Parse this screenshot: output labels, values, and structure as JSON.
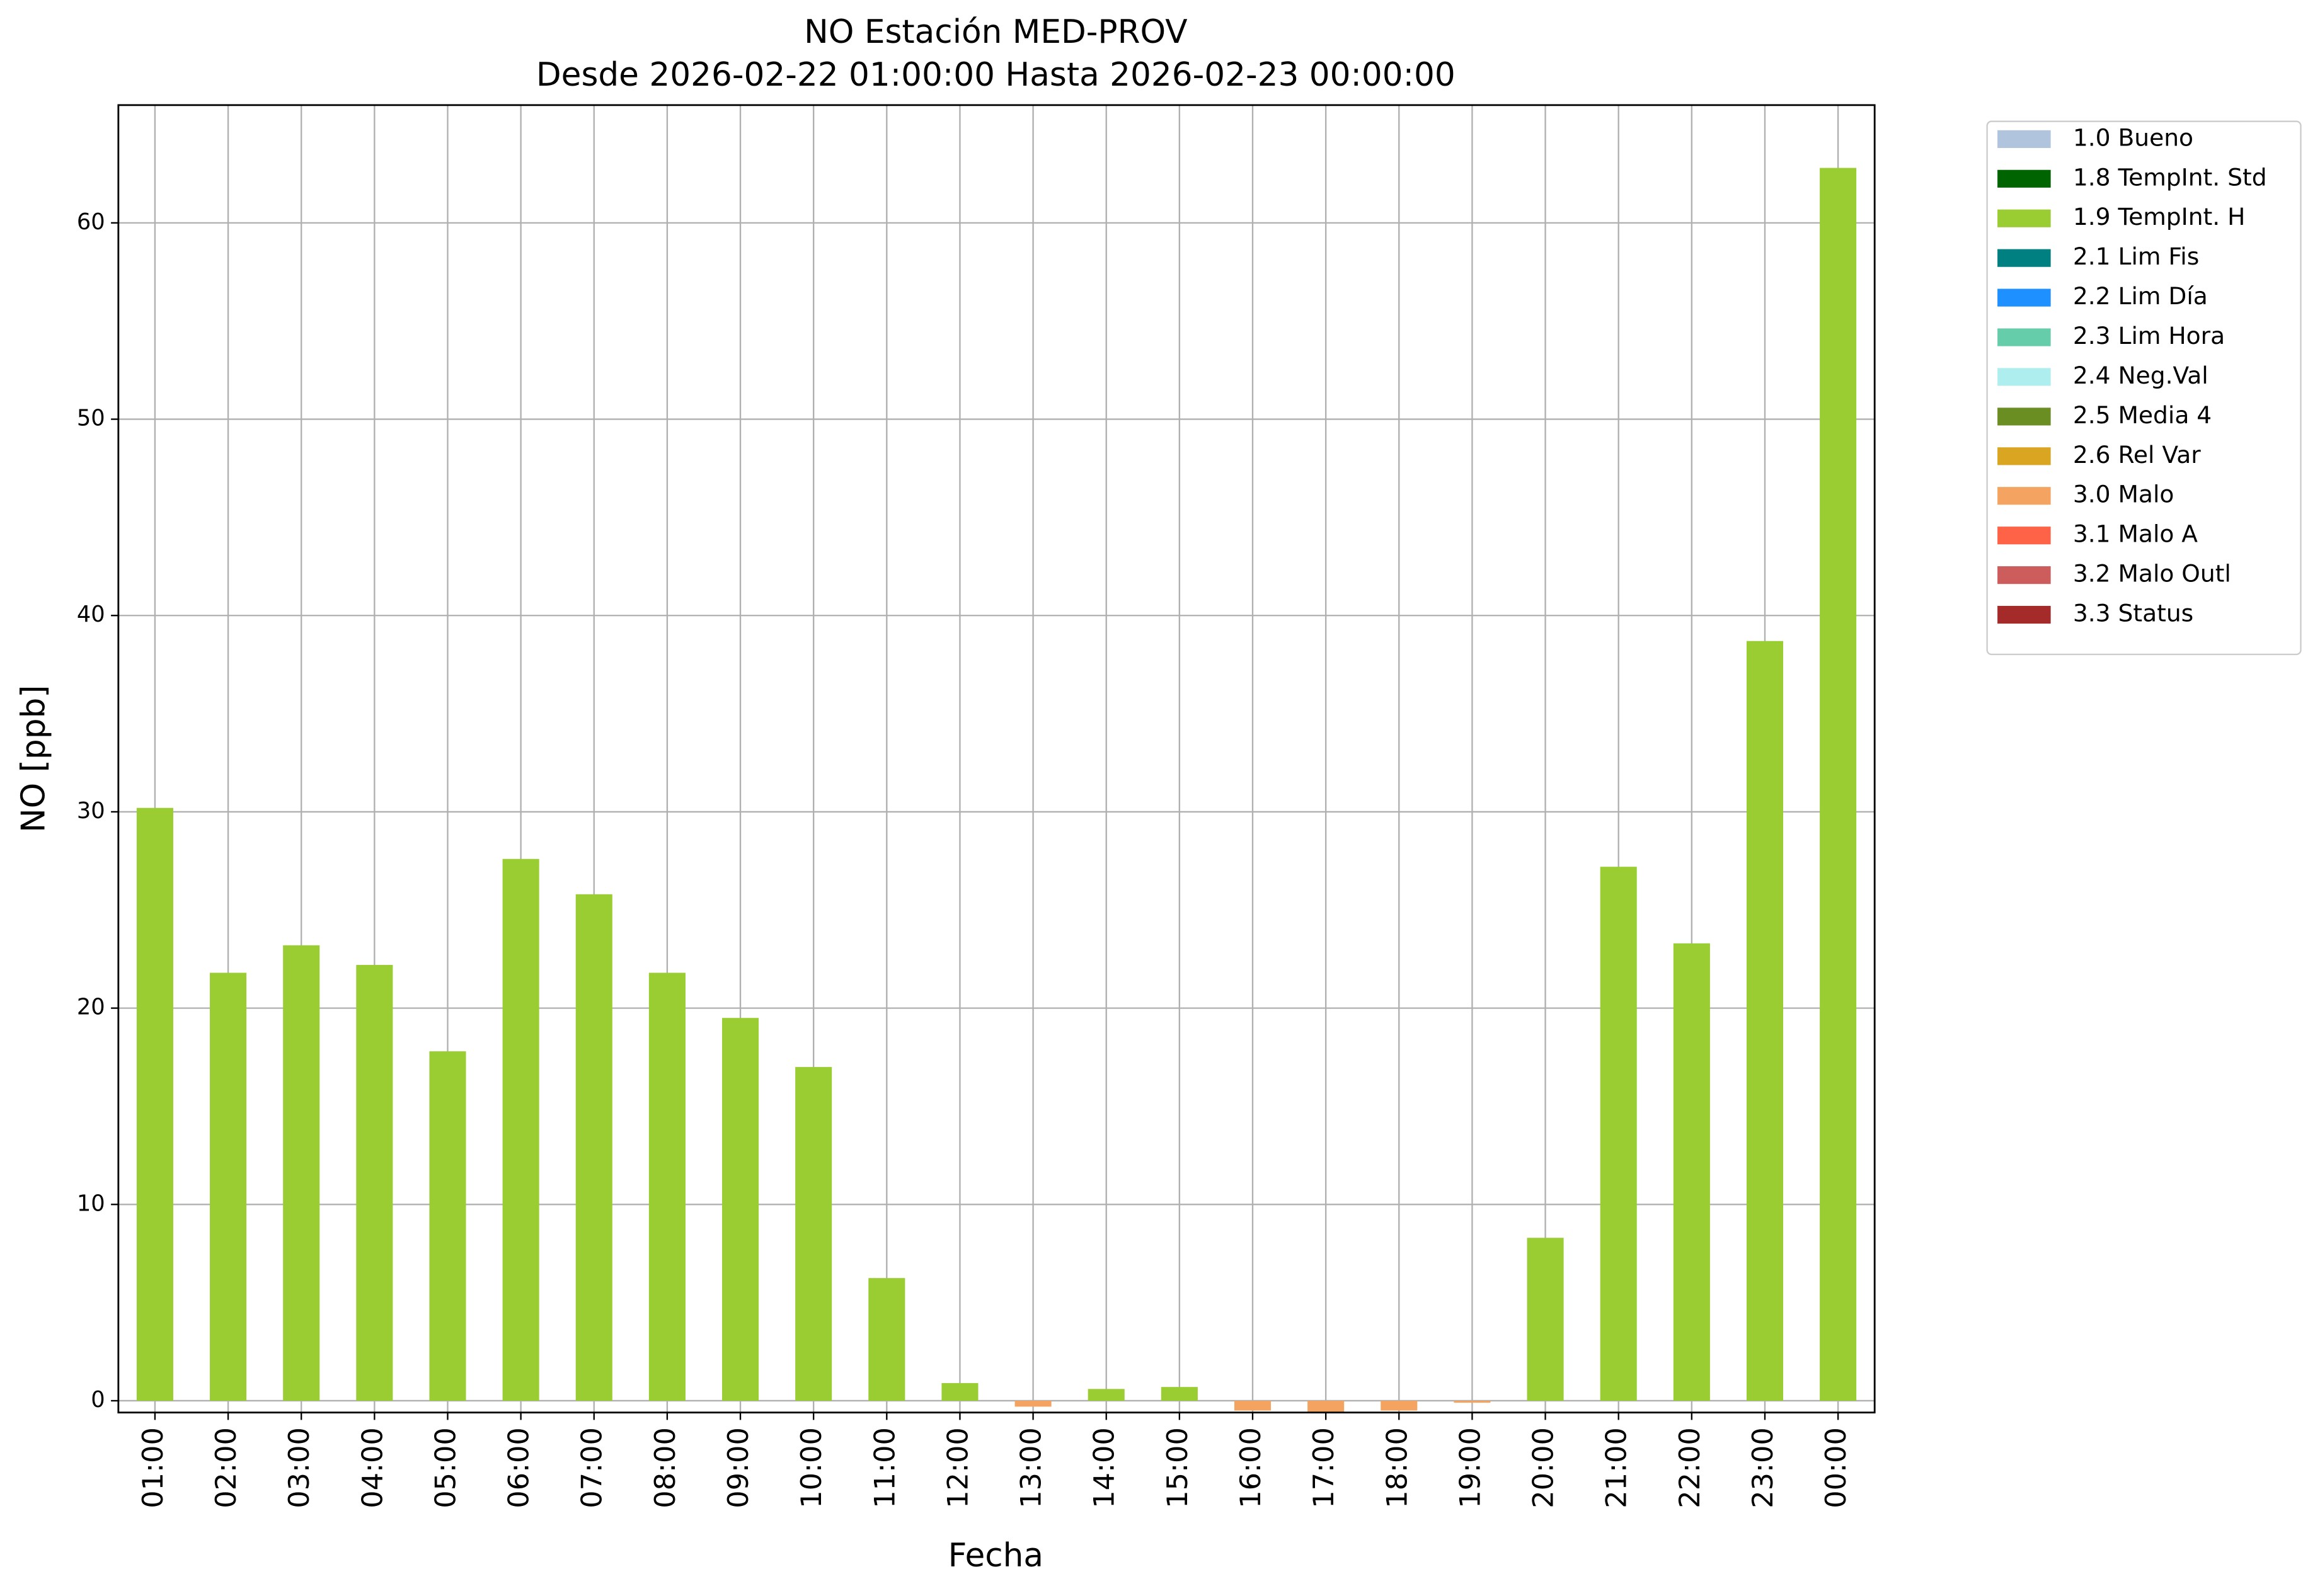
{
  "chart_data": {
    "type": "stacked-bar",
    "title": "NO Estación MED-PROV",
    "subtitle": "Desde 2026-02-22 01:00:00 Hasta 2026-02-23 00:00:00",
    "x_label": "Fecha",
    "y_label": "NO [ppb]",
    "categories": [
      "01:00",
      "02:00",
      "03:00",
      "04:00",
      "05:00",
      "06:00",
      "07:00",
      "08:00",
      "09:00",
      "10:00",
      "11:00",
      "12:00",
      "13:00",
      "14:00",
      "15:00",
      "16:00",
      "17:00",
      "18:00",
      "19:00",
      "20:00",
      "21:00",
      "22:00",
      "23:00",
      "00:00"
    ],
    "series": [
      {
        "name": "1.0 Bueno",
        "color": "#b0c4de",
        "values": [
          null,
          null,
          null,
          null,
          null,
          null,
          null,
          null,
          null,
          null,
          null,
          null,
          null,
          null,
          null,
          null,
          null,
          null,
          null,
          null,
          null,
          null,
          null,
          null
        ]
      },
      {
        "name": "1.8 TempInt. Std",
        "color": "#006400",
        "values": [
          null,
          null,
          null,
          null,
          null,
          null,
          null,
          null,
          null,
          null,
          null,
          null,
          null,
          null,
          null,
          null,
          null,
          null,
          null,
          null,
          null,
          null,
          null,
          null
        ]
      },
      {
        "name": "1.9 TempInt. H",
        "color": "#9acd32",
        "values": [
          30.2,
          21.8,
          23.2,
          22.2,
          17.8,
          27.6,
          25.8,
          21.8,
          19.5,
          17.0,
          6.25,
          0.9,
          null,
          0.6,
          0.7,
          null,
          null,
          null,
          null,
          8.3,
          27.2,
          23.3,
          38.7,
          62.8
        ]
      },
      {
        "name": "2.1 Lim Fis",
        "color": "#008080",
        "values": [
          null,
          null,
          null,
          null,
          null,
          null,
          null,
          null,
          null,
          null,
          null,
          null,
          null,
          null,
          null,
          null,
          null,
          null,
          null,
          null,
          null,
          null,
          null,
          null
        ]
      },
      {
        "name": "2.2 Lim Día",
        "color": "#1e90ff",
        "values": [
          null,
          null,
          null,
          null,
          null,
          null,
          null,
          null,
          null,
          null,
          null,
          null,
          null,
          null,
          null,
          null,
          null,
          null,
          null,
          null,
          null,
          null,
          null,
          null
        ]
      },
      {
        "name": "2.3 Lim Hora",
        "color": "#66cdaa",
        "values": [
          null,
          null,
          null,
          null,
          null,
          null,
          null,
          null,
          null,
          null,
          null,
          null,
          null,
          null,
          null,
          null,
          null,
          null,
          null,
          null,
          null,
          null,
          null,
          null
        ]
      },
      {
        "name": "2.4 Neg.Val",
        "color": "#afeeee",
        "values": [
          null,
          null,
          null,
          null,
          null,
          null,
          null,
          null,
          null,
          null,
          null,
          null,
          null,
          null,
          null,
          null,
          null,
          null,
          null,
          null,
          null,
          null,
          null,
          null
        ]
      },
      {
        "name": "2.5 Media 4",
        "color": "#6b8e23",
        "values": [
          null,
          null,
          null,
          null,
          null,
          null,
          null,
          null,
          null,
          null,
          null,
          null,
          null,
          null,
          null,
          null,
          null,
          null,
          null,
          null,
          null,
          null,
          null,
          null
        ]
      },
      {
        "name": "2.6 Rel Var",
        "color": "#daa520",
        "values": [
          null,
          null,
          null,
          null,
          null,
          null,
          null,
          null,
          null,
          null,
          null,
          null,
          null,
          null,
          null,
          null,
          null,
          null,
          null,
          null,
          null,
          null,
          null,
          null
        ]
      },
      {
        "name": "3.0 Malo",
        "color": "#f4a460",
        "values": [
          null,
          null,
          null,
          null,
          null,
          null,
          null,
          null,
          null,
          null,
          null,
          null,
          -0.3,
          null,
          null,
          -0.5,
          -0.8,
          -0.5,
          -0.1,
          null,
          null,
          null,
          null,
          null
        ]
      },
      {
        "name": "3.1 Malo A",
        "color": "#ff6347",
        "values": [
          null,
          null,
          null,
          null,
          null,
          null,
          null,
          null,
          null,
          null,
          null,
          null,
          null,
          null,
          null,
          null,
          null,
          null,
          null,
          null,
          null,
          null,
          null,
          null
        ]
      },
      {
        "name": "3.2 Malo Outl",
        "color": "#cd5c5c",
        "values": [
          null,
          null,
          null,
          null,
          null,
          null,
          null,
          null,
          null,
          null,
          null,
          null,
          null,
          null,
          null,
          null,
          null,
          null,
          null,
          null,
          null,
          null,
          null,
          null
        ]
      },
      {
        "name": "3.3 Status",
        "color": "#a52a2a",
        "values": [
          null,
          null,
          null,
          null,
          null,
          null,
          null,
          null,
          null,
          null,
          null,
          null,
          null,
          null,
          null,
          null,
          null,
          null,
          null,
          null,
          null,
          null,
          null,
          null
        ]
      }
    ],
    "ylim": [
      -0.6,
      66
    ],
    "yticks": [
      0,
      10,
      20,
      30,
      40,
      50,
      60
    ],
    "grid": true,
    "legend": "outside-upper-right"
  }
}
